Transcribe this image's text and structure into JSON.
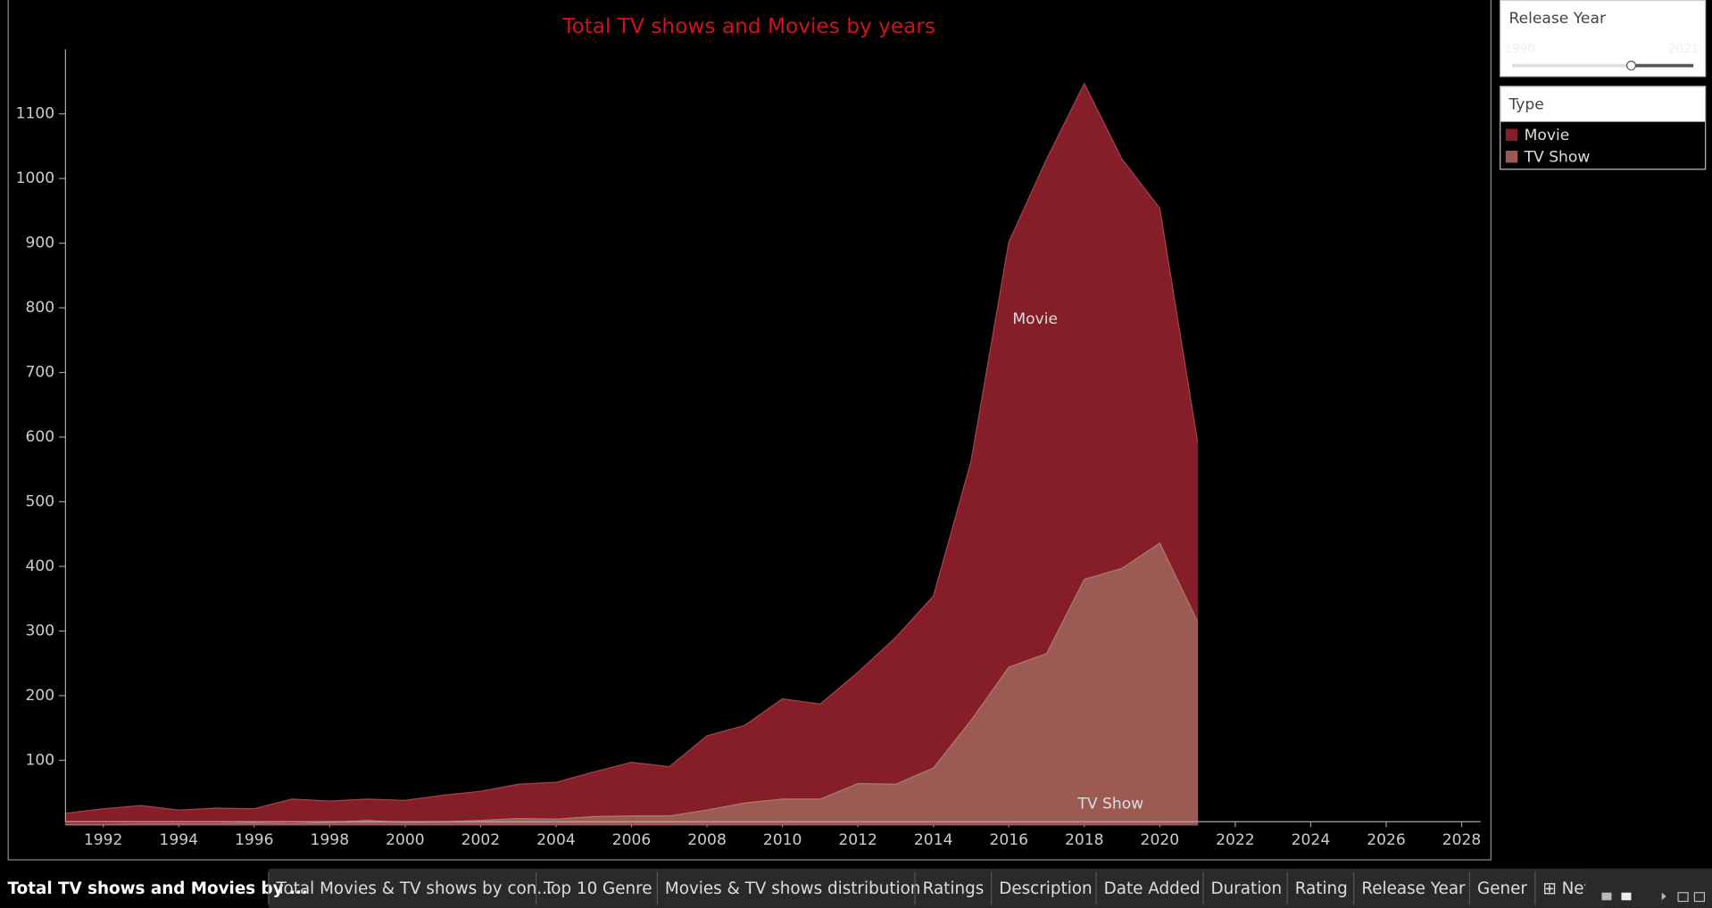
{
  "chart_data": {
    "type": "area",
    "stacked": true,
    "title": "Total TV shows and Movies by years",
    "x": [
      1991,
      1992,
      1993,
      1994,
      1995,
      1996,
      1997,
      1998,
      1999,
      2000,
      2001,
      2002,
      2003,
      2004,
      2005,
      2006,
      2007,
      2008,
      2009,
      2010,
      2011,
      2012,
      2013,
      2014,
      2015,
      2016,
      2017,
      2018,
      2019,
      2020,
      2021
    ],
    "series": [
      {
        "name": "Movie",
        "color": "#861e29",
        "values": [
          17,
          24,
          28,
          21,
          24,
          22,
          38,
          33,
          33,
          34,
          41,
          45,
          53,
          57,
          69,
          83,
          76,
          115,
          120,
          155,
          147,
          172,
          227,
          266,
          401,
          658,
          765,
          767,
          633,
          518,
          278
        ]
      },
      {
        "name": "TV Show",
        "color": "#9b5b53",
        "values": [
          1,
          1,
          2,
          2,
          2,
          3,
          2,
          4,
          7,
          4,
          5,
          7,
          10,
          9,
          13,
          14,
          14,
          23,
          34,
          40,
          40,
          64,
          63,
          88,
          162,
          244,
          265,
          380,
          397,
          436,
          315
        ]
      }
    ],
    "xlim": [
      1991,
      2028.5
    ],
    "xticks": [
      1992,
      1994,
      1996,
      1998,
      2000,
      2002,
      2004,
      2006,
      2008,
      2010,
      2012,
      2014,
      2016,
      2018,
      2020,
      2022,
      2024,
      2026,
      2028
    ],
    "ylim": [
      0,
      1200
    ],
    "yticks": [
      100,
      200,
      300,
      400,
      500,
      600,
      700,
      800,
      900,
      1000,
      1100
    ],
    "grid": false
  },
  "filters": {
    "release_year": {
      "title": "Release Year",
      "min_label": "1990",
      "max_label": "2021"
    },
    "type_legend": {
      "title": "Type"
    }
  },
  "tabs": [
    "Total TV shows and Movies by ...",
    "Total Movies & TV shows by con...",
    "Top 10 Genre",
    "Movies & TV shows distribution",
    "Ratings",
    "Description",
    "Date Added",
    "Duration",
    "Rating",
    "Release Year",
    "Gener",
    "⊞ Net"
  ]
}
